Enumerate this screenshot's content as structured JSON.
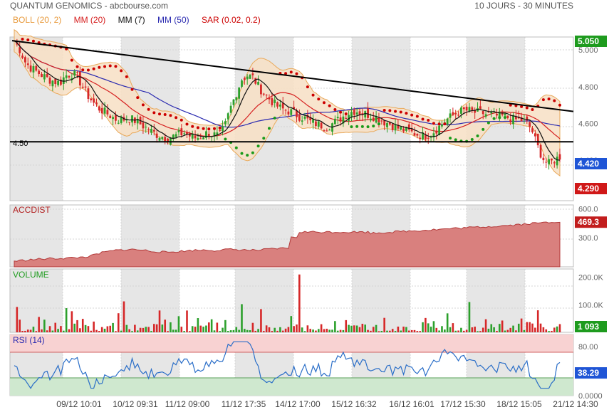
{
  "header": {
    "title": "QUANTUM GENOMICS - abcbourse.com",
    "period": "10 JOURS - 30 MINUTES"
  },
  "legend": [
    {
      "label": "BOLL (20, 2)",
      "color": "#e89a3c"
    },
    {
      "label": "MM (20)",
      "color": "#d62020"
    },
    {
      "label": "MM (7)",
      "color": "#111111"
    },
    {
      "label": "MM (50)",
      "color": "#2a2ab0"
    },
    {
      "label": "SAR (0.02, 0.2)",
      "color": "#cc0000"
    }
  ],
  "chart_data": [
    {
      "type": "candlestick",
      "panel": "price",
      "yticks": [
        "5.000",
        "4.800",
        "4.600",
        "4.400"
      ],
      "ylim": [
        4.18,
        5.07
      ],
      "last_price": "4.420",
      "top_price": "5.050",
      "bottom_price": "4.290",
      "reference_line": {
        "label": "4.50",
        "value": 4.5
      },
      "trendline": {
        "from": 5.05,
        "to": 4.665
      },
      "ohlc_sample": [
        5.05,
        5.0,
        4.93,
        4.9,
        4.88,
        4.86,
        4.84,
        4.83,
        4.82,
        4.86,
        4.87,
        4.86,
        4.8,
        4.75,
        4.71,
        4.68,
        4.66,
        4.64,
        4.62,
        4.62,
        4.63,
        4.62,
        4.6,
        4.58,
        4.56,
        4.54,
        4.53,
        4.52,
        4.53,
        4.54,
        4.55,
        4.53,
        4.52,
        4.53,
        4.55,
        4.54,
        4.53,
        4.58,
        4.68,
        4.76,
        4.84,
        4.86,
        4.85,
        4.8,
        4.76,
        4.73,
        4.7,
        4.68,
        4.67,
        4.66,
        4.64,
        4.63,
        4.61,
        4.6,
        4.59,
        4.58,
        4.6,
        4.62,
        4.64,
        4.66,
        4.67,
        4.66,
        4.65,
        4.64,
        4.63,
        4.61,
        4.6,
        4.58,
        4.57,
        4.56,
        4.55,
        4.54,
        4.53,
        4.54,
        4.56,
        4.59,
        4.62,
        4.64,
        4.66,
        4.67,
        4.67,
        4.66,
        4.66,
        4.65,
        4.65,
        4.64,
        4.64,
        4.63,
        4.62,
        4.62,
        4.61,
        4.57,
        4.48,
        4.41,
        4.38,
        4.4,
        4.42
      ]
    },
    {
      "type": "area",
      "panel": "accdist",
      "title": "ACCDIST",
      "yticks": [
        "600.0",
        "300.0"
      ],
      "ylim": [
        0,
        640
      ],
      "last_value": "469.3"
    },
    {
      "type": "bar",
      "panel": "volume",
      "title": "VOLUME",
      "yticks": [
        "200.0K",
        "100.0K"
      ],
      "ylim": [
        0,
        230
      ],
      "last_value": "1 093"
    },
    {
      "type": "line",
      "panel": "rsi",
      "title": "RSI (14)",
      "yticks": [
        "80.00",
        "0.0000"
      ],
      "ylim": [
        0,
        100
      ],
      "last_value": "38.29"
    }
  ],
  "x_axis_labels": [
    "09/12 10:01",
    "10/12 09:31",
    "11/12 09:00",
    "11/12 17:35",
    "14/12 17:00",
    "15/12 16:32",
    "16/12 16:01",
    "17/12 15:30",
    "18/12 15:05",
    "21/12 14:30"
  ],
  "colors": {
    "up": "#2ca02c",
    "down": "#d62728",
    "band_fill": "#f7dfc4",
    "shade": "#e6e6e6",
    "last_price_bg": "#1f55d6",
    "top_bg": "#1e9b1e",
    "bottom_bg": "#d01818",
    "accdist_fill": "#d9807e",
    "rsi_line": "#2a6ec8"
  }
}
